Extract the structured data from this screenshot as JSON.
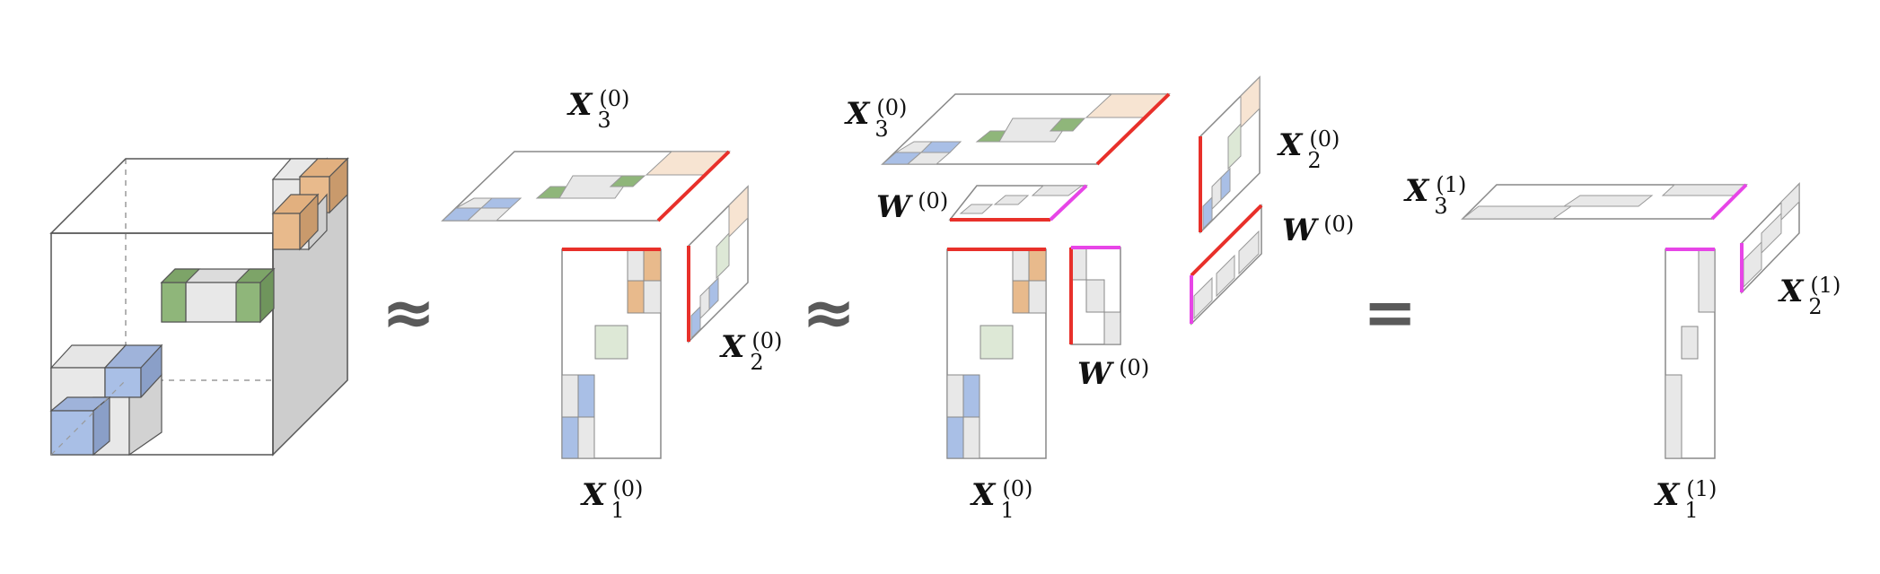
{
  "colors": {
    "blue": "#a9bfe6",
    "green": "#8fb67a",
    "orange": "#e8ba8c",
    "gray": "#e8e8e8",
    "dark_gray": "#cdcdcd",
    "outline": "#555555",
    "red": "#e8302a",
    "magenta": "#e745e7"
  },
  "operators": {
    "approx_1": "≈",
    "approx_2": "≈",
    "equals": "="
  },
  "labels": {
    "x3_a": {
      "base": "X",
      "sup": "(0)",
      "sub": "3"
    },
    "x2_a": {
      "base": "X",
      "sup": "(0)",
      "sub": "2"
    },
    "x1_a": {
      "base": "X",
      "sup": "(0)",
      "sub": "1"
    },
    "x3_b": {
      "base": "X",
      "sup": "(0)",
      "sub": "3"
    },
    "w_top": {
      "base": "W",
      "sup": "(0)",
      "sub": ""
    },
    "x2_b": {
      "base": "X",
      "sup": "(0)",
      "sub": "2"
    },
    "w_right": {
      "base": "W",
      "sup": "(0)",
      "sub": ""
    },
    "w_mid": {
      "base": "W",
      "sup": "(0)",
      "sub": ""
    },
    "x1_b": {
      "base": "X",
      "sup": "(0)",
      "sub": "1"
    },
    "x3_c": {
      "base": "X",
      "sup": "(1)",
      "sub": "3"
    },
    "x2_c": {
      "base": "X",
      "sup": "(1)",
      "sub": "2"
    },
    "x1_c": {
      "base": "X",
      "sup": "(1)",
      "sub": "1"
    }
  }
}
